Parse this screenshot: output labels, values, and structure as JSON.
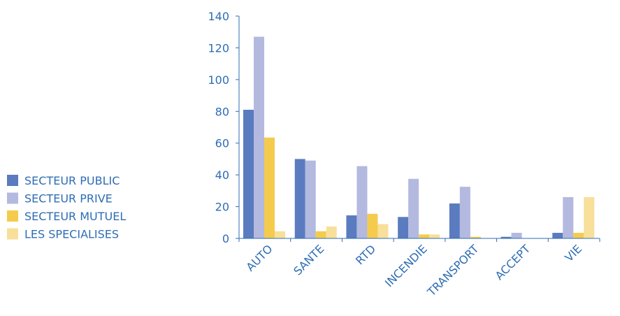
{
  "chart_data": {
    "type": "bar",
    "categories": [
      "AUTO",
      "SANTE",
      "RTD",
      "INCENDIE",
      "TRANSPORT",
      "ACCEPT",
      "VIE"
    ],
    "series": [
      {
        "name": "SECTEUR PUBLIC",
        "color": "#5a7bbf",
        "values": [
          81,
          50,
          14.5,
          13.5,
          22,
          1,
          3.5
        ]
      },
      {
        "name": "SECTEUR PRIVE",
        "color": "#b3b9df",
        "values": [
          127,
          49,
          45.5,
          37.5,
          32.5,
          3.5,
          26
        ]
      },
      {
        "name": "SECTEUR MUTUEL",
        "color": "#f5cb4d",
        "values": [
          63.5,
          4.5,
          15.5,
          2.5,
          1,
          0,
          3.5
        ]
      },
      {
        "name": "LES SPECIALISES",
        "color": "#f8df9a",
        "values": [
          4.5,
          7.5,
          9,
          2.5,
          0,
          0,
          26
        ]
      }
    ],
    "ylim": [
      0,
      140
    ],
    "yticks": [
      "0",
      "20",
      "40",
      "60",
      "80",
      "100",
      "120",
      "140"
    ],
    "legend_position": "left",
    "grid": false,
    "axis_color": "#2e6db4"
  }
}
